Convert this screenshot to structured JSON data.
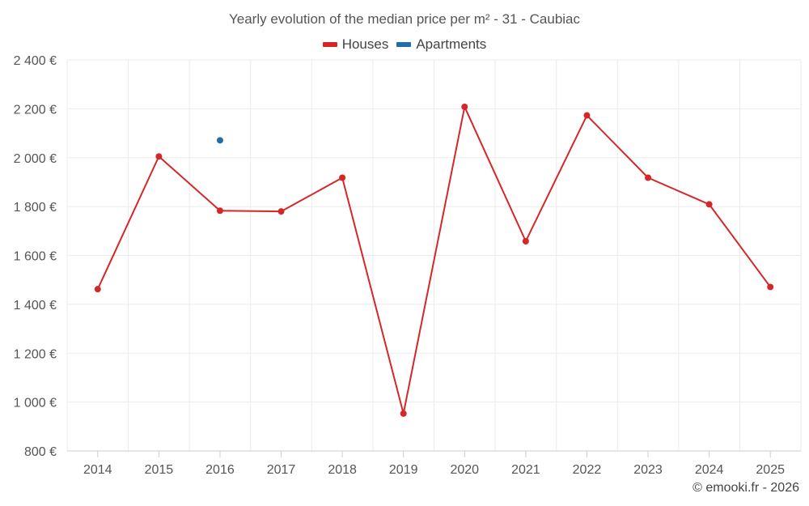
{
  "chart_data": {
    "type": "line",
    "title": "Yearly evolution of the median price per m² - 31 - Caubiac",
    "categories": [
      "2014",
      "2015",
      "2016",
      "2017",
      "2018",
      "2019",
      "2020",
      "2021",
      "2022",
      "2023",
      "2024",
      "2025"
    ],
    "series": [
      {
        "name": "Houses",
        "color": "#d62728",
        "values": [
          1462,
          2005,
          1783,
          1780,
          1918,
          953,
          2208,
          1658,
          2173,
          1918,
          1809,
          1471
        ]
      },
      {
        "name": "Apartments",
        "color": "#1f6fa5",
        "values": [
          null,
          null,
          2071,
          null,
          null,
          null,
          null,
          null,
          null,
          null,
          null,
          null
        ]
      }
    ],
    "yticks": [
      "800 €",
      "1 000 €",
      "1 200 €",
      "1 400 €",
      "1 600 €",
      "1 800 €",
      "2 000 €",
      "2 200 €",
      "2 400 €"
    ],
    "ylim": [
      800,
      2400
    ],
    "grid": true,
    "legend_position": "top-center"
  },
  "credit": "© emooki.fr - 2026"
}
